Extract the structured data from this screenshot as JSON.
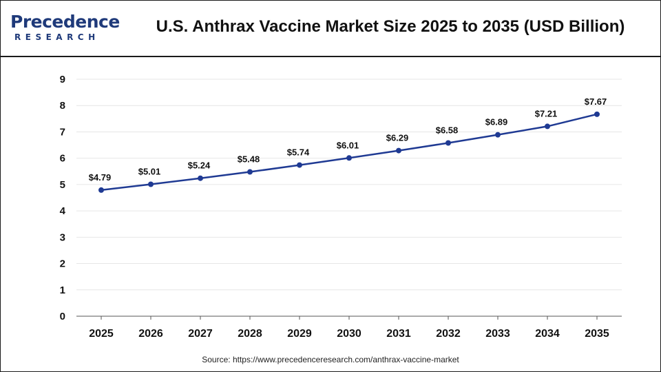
{
  "header": {
    "logo_text": "Precedence",
    "logo_subtext": "RESEARCH",
    "title": "U.S. Anthrax Vaccine Market Size 2025 to 2035 (USD Billion)"
  },
  "source": "Source: https://www.precedenceresearch.com/anthrax-vaccine-market",
  "colors": {
    "line": "#1f3a93",
    "grid": "#e6e6e6",
    "logo": "#1f3a7a"
  },
  "chart_data": {
    "type": "line",
    "title": "U.S. Anthrax Vaccine Market Size 2025 to 2035 (USD Billion)",
    "xlabel": "",
    "ylabel": "",
    "categories": [
      "2025",
      "2026",
      "2027",
      "2028",
      "2029",
      "2030",
      "2031",
      "2032",
      "2033",
      "2034",
      "2035"
    ],
    "values": [
      4.79,
      5.01,
      5.24,
      5.48,
      5.74,
      6.01,
      6.29,
      6.58,
      6.89,
      7.21,
      7.67
    ],
    "data_labels": [
      "$4.79",
      "$5.01",
      "$5.24",
      "$5.48",
      "$5.74",
      "$6.01",
      "$6.29",
      "$6.58",
      "$6.89",
      "$7.21",
      "$7.67"
    ],
    "ylim": [
      0,
      9
    ],
    "yticks": [
      0,
      1,
      2,
      3,
      4,
      5,
      6,
      7,
      8,
      9
    ],
    "grid": true,
    "legend": "none"
  }
}
